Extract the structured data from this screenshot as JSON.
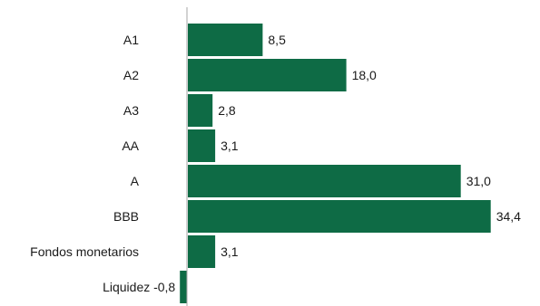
{
  "colors": {
    "bar": "#0e6b45",
    "axis": "#a6a6a6",
    "text": "#1a1a1a"
  },
  "chart_data": {
    "type": "bar",
    "orientation": "horizontal",
    "categories": [
      "A1",
      "A2",
      "A3",
      "AA",
      "A",
      "BBB",
      "Fondos monetarios",
      "Liquidez"
    ],
    "values": [
      8.5,
      18.0,
      2.8,
      3.1,
      31.0,
      34.4,
      3.1,
      -0.8
    ],
    "value_labels": [
      "8,5",
      "18,0",
      "2,8",
      "3,1",
      "31,0",
      "34,4",
      "3,1",
      "-0,8"
    ],
    "title": "",
    "xlabel": "",
    "ylabel": "",
    "grid": false,
    "legend": "none"
  }
}
